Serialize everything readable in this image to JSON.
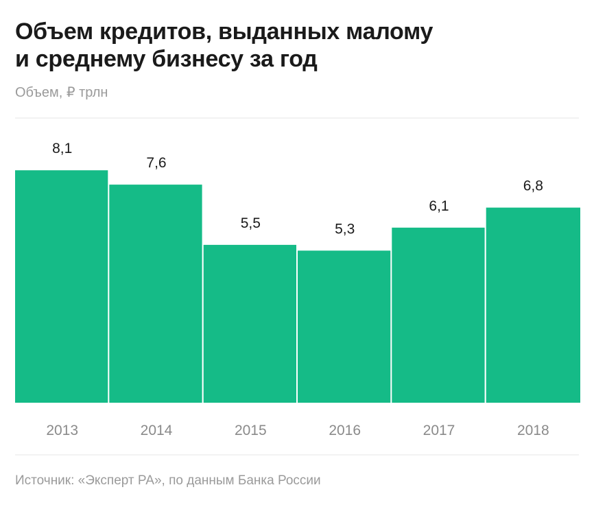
{
  "title": {
    "line1": "Объем кредитов, выданных малому",
    "line2": "и среднему бизнесу за год"
  },
  "unit_label": "Объем, ₽ трлн",
  "source": "Источник: «Эксперт РА», по данным Банка России",
  "colors": {
    "bar": "#15bb87",
    "grid": "#e4e4e4",
    "value_text": "#1a1a1a",
    "tick_text": "#8a8a8a"
  },
  "chart_data": {
    "type": "bar",
    "title": "Объем кредитов, выданных малому и среднему бизнесу за год",
    "xlabel": "",
    "ylabel": "Объем, ₽ трлн",
    "categories": [
      "2013",
      "2014",
      "2015",
      "2016",
      "2017",
      "2018"
    ],
    "values": [
      8.1,
      7.6,
      5.5,
      5.3,
      6.1,
      6.8
    ],
    "value_labels": [
      "8,1",
      "7,6",
      "5,5",
      "5,3",
      "6,1",
      "6,8"
    ],
    "ylim": [
      0,
      10
    ],
    "grid": false,
    "legend": "none"
  }
}
